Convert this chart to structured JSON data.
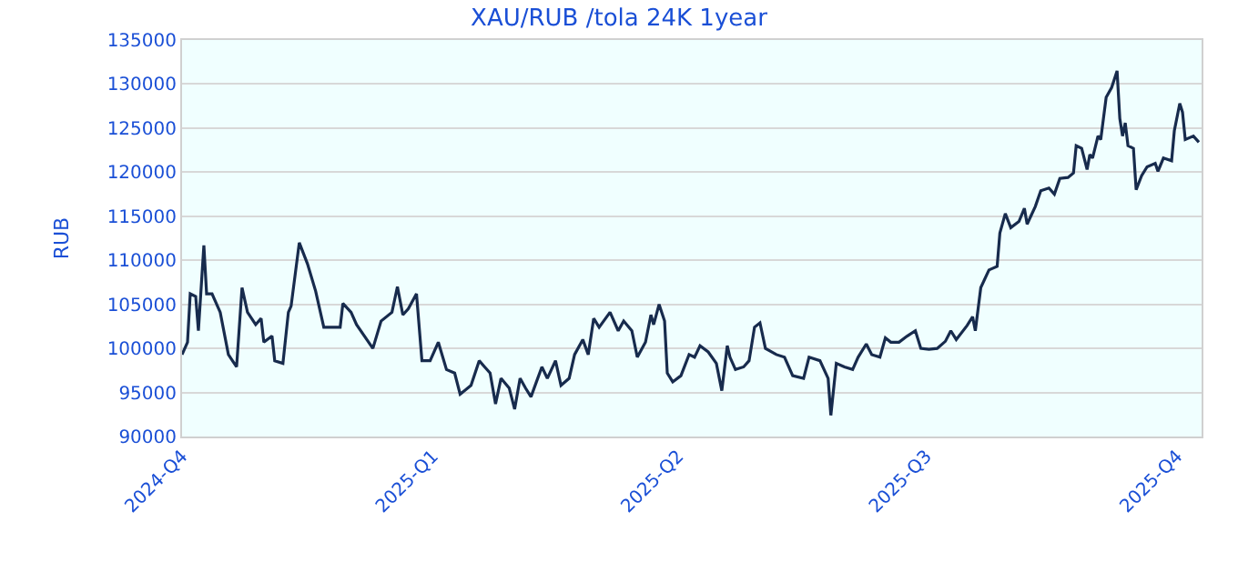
{
  "chart_data": {
    "type": "line",
    "title": "XAU/RUB /tola 24K 1year",
    "ylabel": "RUB",
    "x": [
      "2024-10-01",
      "2024-10-03",
      "2024-10-04",
      "2024-10-06",
      "2024-10-07",
      "2024-10-09",
      "2024-10-10",
      "2024-10-12",
      "2024-10-15",
      "2024-10-18",
      "2024-10-21",
      "2024-10-23",
      "2024-10-25",
      "2024-10-28",
      "2024-10-30",
      "2024-10-31",
      "2024-11-03",
      "2024-11-04",
      "2024-11-07",
      "2024-11-09",
      "2024-11-10",
      "2024-11-13",
      "2024-11-16",
      "2024-11-19",
      "2024-11-22",
      "2024-11-28",
      "2024-11-29",
      "2024-12-02",
      "2024-12-04",
      "2024-12-10",
      "2024-12-13",
      "2024-12-17",
      "2024-12-19",
      "2024-12-21",
      "2024-12-23",
      "2024-12-26",
      "2024-12-28",
      "2024-12-31",
      "2025-01-03",
      "2025-01-06",
      "2025-01-09",
      "2025-01-11",
      "2025-01-15",
      "2025-01-18",
      "2025-01-20",
      "2025-01-22",
      "2025-01-24",
      "2025-01-26",
      "2025-01-29",
      "2025-01-31",
      "2025-02-02",
      "2025-02-04",
      "2025-02-06",
      "2025-02-08",
      "2025-02-10",
      "2025-02-12",
      "2025-02-15",
      "2025-02-17",
      "2025-02-20",
      "2025-02-22",
      "2025-02-25",
      "2025-02-27",
      "2025-03-01",
      "2025-03-03",
      "2025-03-07",
      "2025-03-10",
      "2025-03-12",
      "2025-03-15",
      "2025-03-17",
      "2025-03-20",
      "2025-03-22",
      "2025-03-23",
      "2025-03-25",
      "2025-03-27",
      "2025-03-28",
      "2025-03-30",
      "2025-04-02",
      "2025-04-05",
      "2025-04-07",
      "2025-04-09",
      "2025-04-12",
      "2025-04-15",
      "2025-04-17",
      "2025-04-19",
      "2025-04-20",
      "2025-04-22",
      "2025-04-25",
      "2025-04-27",
      "2025-04-29",
      "2025-05-01",
      "2025-05-03",
      "2025-05-07",
      "2025-05-10",
      "2025-05-13",
      "2025-05-17",
      "2025-05-19",
      "2025-05-23",
      "2025-05-26",
      "2025-05-27",
      "2025-05-29",
      "2025-06-01",
      "2025-06-04",
      "2025-06-06",
      "2025-06-09",
      "2025-06-11",
      "2025-06-14",
      "2025-06-16",
      "2025-06-18",
      "2025-06-21",
      "2025-06-24",
      "2025-06-27",
      "2025-06-29",
      "2025-07-02",
      "2025-07-05",
      "2025-07-08",
      "2025-07-10",
      "2025-07-12",
      "2025-07-16",
      "2025-07-18",
      "2025-07-19",
      "2025-07-21",
      "2025-07-24",
      "2025-07-27",
      "2025-07-28",
      "2025-07-30",
      "2025-08-01",
      "2025-08-04",
      "2025-08-06",
      "2025-08-07",
      "2025-08-10",
      "2025-08-12",
      "2025-08-15",
      "2025-08-17",
      "2025-08-19",
      "2025-08-22",
      "2025-08-24",
      "2025-08-25",
      "2025-08-27",
      "2025-08-29",
      "2025-08-30",
      "2025-08-31",
      "2025-09-02",
      "2025-09-03",
      "2025-09-05",
      "2025-09-07",
      "2025-09-09",
      "2025-09-10",
      "2025-09-11",
      "2025-09-12",
      "2025-09-13",
      "2025-09-15",
      "2025-09-16",
      "2025-09-18",
      "2025-09-20",
      "2025-09-23",
      "2025-09-24",
      "2025-09-26",
      "2025-09-29",
      "2025-09-30",
      "2025-10-02",
      "2025-10-03",
      "2025-10-04",
      "2025-10-07",
      "2025-10-09"
    ],
    "series": [
      {
        "color": "#172b4d",
        "values": [
          99300,
          100700,
          106200,
          105900,
          102000,
          111700,
          106200,
          106200,
          104100,
          99300,
          97900,
          106900,
          104100,
          102700,
          103400,
          100700,
          101400,
          98600,
          98300,
          104100,
          104800,
          112000,
          109600,
          106500,
          102400,
          102400,
          105100,
          104100,
          102700,
          100000,
          103100,
          104100,
          107000,
          103800,
          104500,
          106200,
          98600,
          98600,
          100700,
          97600,
          97200,
          94800,
          95800,
          98600,
          97900,
          97200,
          93700,
          96600,
          95500,
          93100,
          96600,
          95500,
          94500,
          96200,
          97900,
          96600,
          98600,
          95800,
          96600,
          99300,
          101000,
          99300,
          103400,
          102400,
          104100,
          102000,
          103100,
          102000,
          99000,
          100700,
          103800,
          102700,
          105000,
          103100,
          97200,
          96200,
          96900,
          99300,
          99000,
          100300,
          99600,
          98300,
          95200,
          100300,
          99000,
          97600,
          97900,
          98600,
          102400,
          102900,
          100000,
          99300,
          99000,
          96900,
          96600,
          99000,
          98600,
          96600,
          92400,
          98300,
          97900,
          97600,
          99000,
          100500,
          99300,
          99000,
          101200,
          100700,
          100700,
          101400,
          102000,
          100000,
          99900,
          100000,
          100800,
          102000,
          101000,
          102600,
          103600,
          102000,
          106900,
          108900,
          109300,
          113100,
          115300,
          113700,
          114400,
          115900,
          114100,
          116100,
          117900,
          118200,
          117500,
          119300,
          119400,
          119900,
          123000,
          122700,
          120300,
          122000,
          121600,
          124100,
          123700,
          128500,
          129600,
          131500,
          126100,
          124100,
          125600,
          123000,
          122700,
          118000,
          119600,
          120600,
          121000,
          120100,
          121600,
          121300,
          124700,
          127800,
          126800,
          123700,
          124100,
          123400
        ]
      }
    ],
    "xlim": [
      "2024-10-01",
      "2025-10-10"
    ],
    "xticks": [
      {
        "value": "2024-10-01",
        "label": "2024-Q4"
      },
      {
        "value": "2025-01-01",
        "label": "2025-Q1"
      },
      {
        "value": "2025-04-01",
        "label": "2025-Q2"
      },
      {
        "value": "2025-07-01",
        "label": "2025-Q3"
      },
      {
        "value": "2025-10-01",
        "label": "2025-Q4"
      }
    ],
    "ylim": [
      90000,
      135000
    ],
    "yticks": [
      90000,
      95000,
      100000,
      105000,
      110000,
      115000,
      120000,
      125000,
      130000,
      135000
    ],
    "grid": "y"
  }
}
